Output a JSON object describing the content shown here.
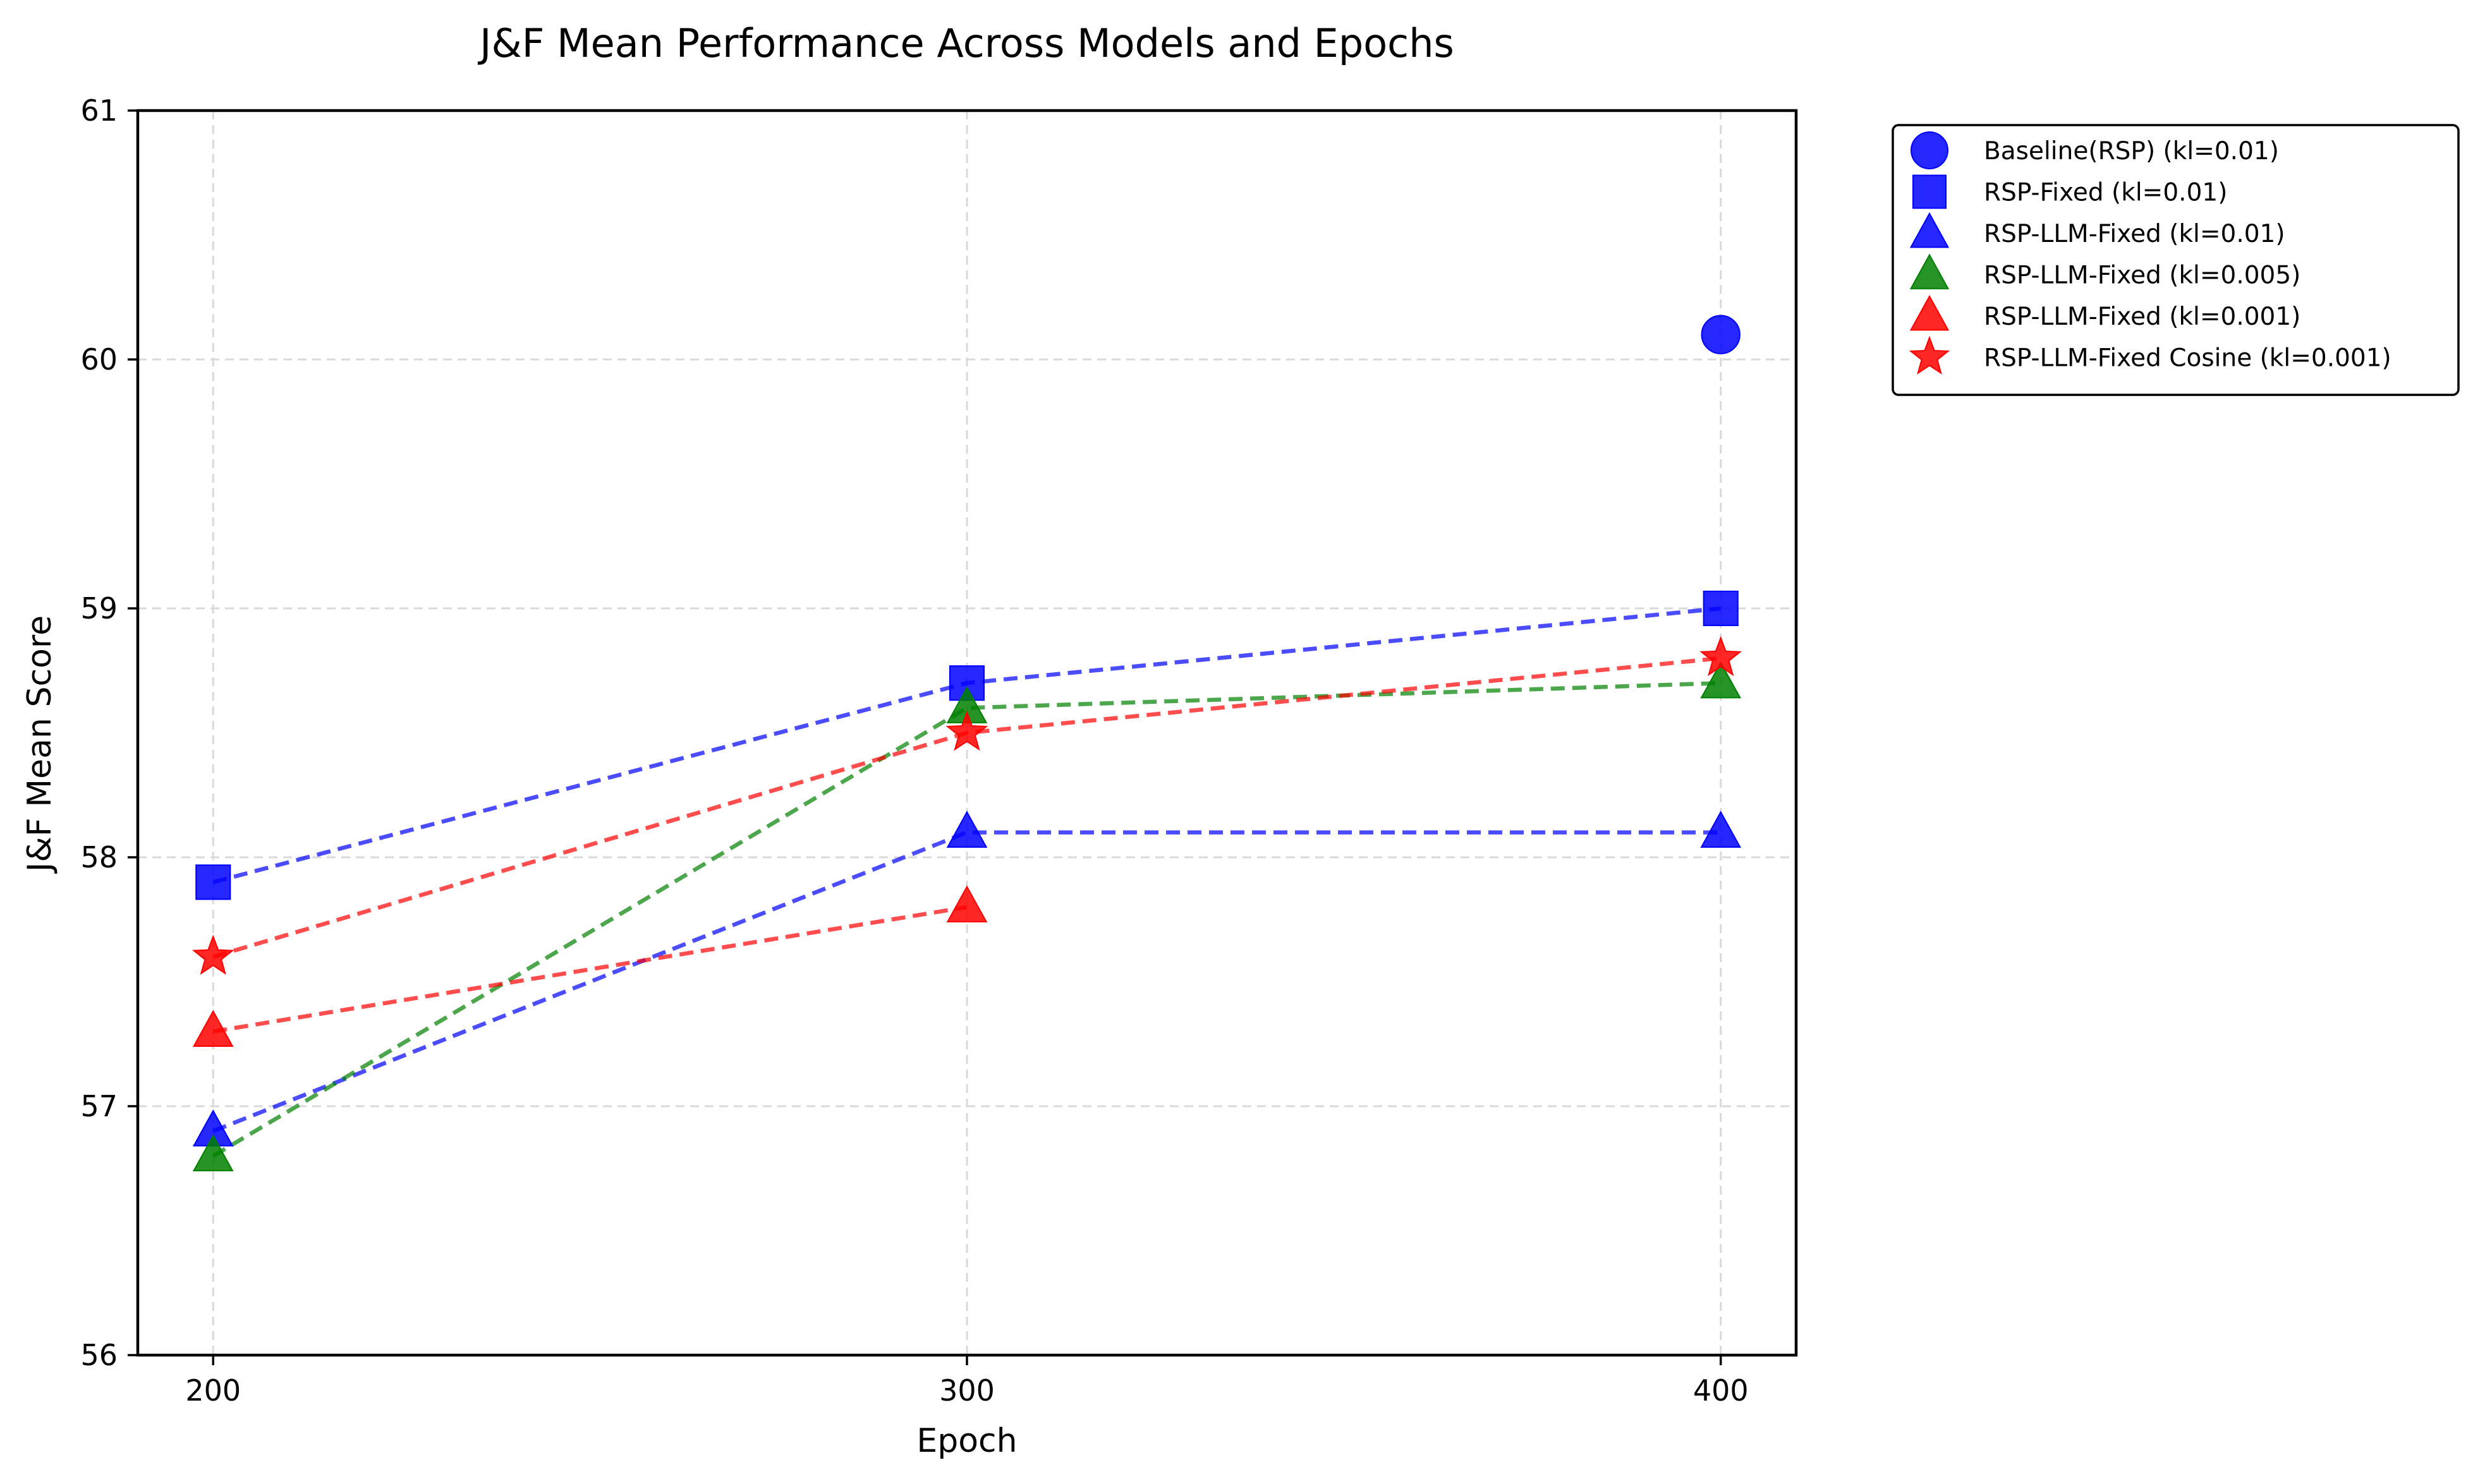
{
  "chart_data": {
    "type": "line",
    "title": "J&F Mean Performance Across Models and Epochs",
    "xlabel": "Epoch",
    "ylabel": "J&F Mean Score",
    "x_ticks": [
      200,
      300,
      400
    ],
    "y_ticks": [
      56,
      57,
      58,
      59,
      60,
      61
    ],
    "xlim": [
      190,
      410
    ],
    "ylim": [
      56,
      61
    ],
    "grid": true,
    "legend_position": "outside-top-right",
    "series": [
      {
        "name": "Baseline(RSP) (kl=0.01)",
        "color": "#0000ff",
        "marker": "circle",
        "line": false,
        "points": [
          {
            "x": 400,
            "y": 60.1
          }
        ]
      },
      {
        "name": "RSP-Fixed (kl=0.01)",
        "color": "#0000ff",
        "marker": "square",
        "line": true,
        "points": [
          {
            "x": 200,
            "y": 57.9
          },
          {
            "x": 300,
            "y": 58.7
          },
          {
            "x": 400,
            "y": 59.0
          }
        ]
      },
      {
        "name": "RSP-LLM-Fixed (kl=0.01)",
        "color": "#0000ff",
        "marker": "triangle",
        "line": true,
        "points": [
          {
            "x": 200,
            "y": 56.9
          },
          {
            "x": 300,
            "y": 58.1
          },
          {
            "x": 400,
            "y": 58.1
          }
        ]
      },
      {
        "name": "RSP-LLM-Fixed (kl=0.005)",
        "color": "#008000",
        "marker": "triangle",
        "line": true,
        "points": [
          {
            "x": 200,
            "y": 56.8
          },
          {
            "x": 300,
            "y": 58.6
          },
          {
            "x": 400,
            "y": 58.7
          }
        ]
      },
      {
        "name": "RSP-LLM-Fixed (kl=0.001)",
        "color": "#ff0000",
        "marker": "triangle",
        "line": true,
        "points": [
          {
            "x": 200,
            "y": 57.3
          },
          {
            "x": 300,
            "y": 57.8
          }
        ]
      },
      {
        "name": "RSP-LLM-Fixed Cosine (kl=0.001)",
        "color": "#ff0000",
        "marker": "star",
        "line": true,
        "points": [
          {
            "x": 200,
            "y": 57.6
          },
          {
            "x": 300,
            "y": 58.5
          },
          {
            "x": 400,
            "y": 58.8
          }
        ]
      }
    ]
  }
}
